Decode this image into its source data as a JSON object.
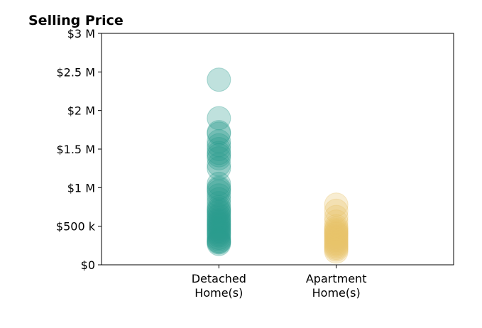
{
  "chart_data": {
    "type": "scatter",
    "title": "Selling Price",
    "xlabel": "",
    "ylabel": "",
    "ylim": [
      0,
      3000000
    ],
    "xlim": [
      -1,
      2
    ],
    "y_ticks": [
      {
        "value": 0,
        "label": "$0"
      },
      {
        "value": 500000,
        "label": "$500 k"
      },
      {
        "value": 1000000,
        "label": "$1 M"
      },
      {
        "value": 1500000,
        "label": "$1.5 M"
      },
      {
        "value": 2000000,
        "label": "$2 M"
      },
      {
        "value": 2500000,
        "label": "$2.5 M"
      },
      {
        "value": 3000000,
        "label": "$3 M"
      }
    ],
    "categories": [
      {
        "x": 0,
        "label_line1": "Detached",
        "label_line2": "Home(s)"
      },
      {
        "x": 1,
        "label_line1": "Apartment",
        "label_line2": "Home(s)"
      }
    ],
    "grid": false,
    "legend": "none",
    "series": [
      {
        "color": "#2a9d8f",
        "x": 0,
        "values": [
          2400000,
          1900000,
          1720000,
          1700000,
          1600000,
          1550000,
          1500000,
          1450000,
          1420000,
          1380000,
          1300000,
          1250000,
          1050000,
          1000000,
          980000,
          950000,
          900000,
          850000,
          800000,
          750000,
          720000,
          700000,
          680000,
          650000,
          630000,
          600000,
          580000,
          560000,
          540000,
          520000,
          500000,
          480000,
          460000,
          440000,
          420000,
          400000,
          380000,
          350000,
          330000,
          310000,
          300000,
          290000,
          270000
        ]
      },
      {
        "color": "#e9c46a",
        "x": 1,
        "values": [
          780000,
          700000,
          620000,
          560000,
          500000,
          470000,
          450000,
          430000,
          410000,
          400000,
          380000,
          360000,
          340000,
          320000,
          300000,
          280000,
          260000,
          240000,
          220000,
          200000,
          170000
        ]
      }
    ]
  }
}
